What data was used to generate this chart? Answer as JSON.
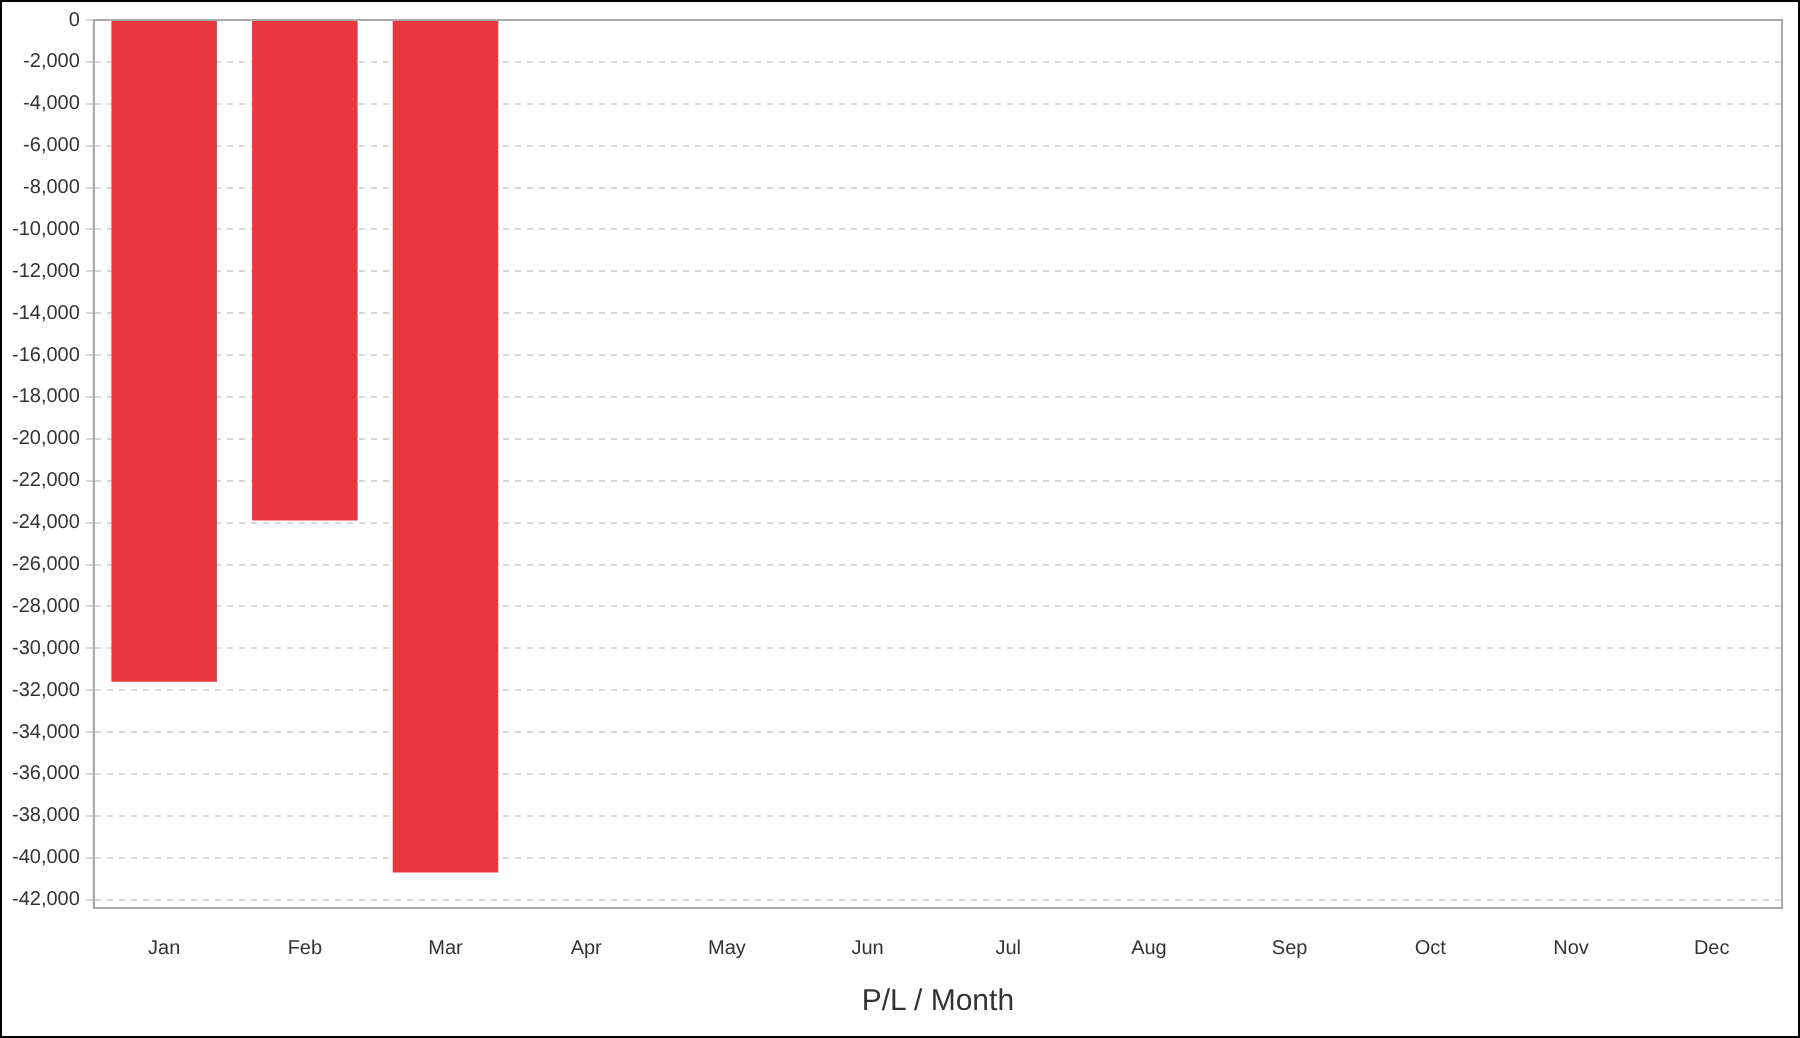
{
  "chart_data": {
    "type": "bar",
    "xlabel": "P/L / Month",
    "categories": [
      "Jan",
      "Feb",
      "Mar",
      "Apr",
      "May",
      "Jun",
      "Jul",
      "Aug",
      "Sep",
      "Oct",
      "Nov",
      "Dec"
    ],
    "values": [
      -31600,
      -23900,
      -40700,
      null,
      null,
      null,
      null,
      null,
      null,
      null,
      null,
      null
    ],
    "color": "#e8383d",
    "ylim": [
      -42400,
      0
    ],
    "yticks": [
      0,
      {
        "value": -2000,
        "label": "-2,000"
      },
      {
        "value": -4000,
        "label": "-4,000"
      },
      {
        "value": -6000,
        "label": "-6,000"
      },
      {
        "value": -8000,
        "label": "-8,000"
      },
      {
        "value": -10000,
        "label": "-10,000"
      },
      {
        "value": -12000,
        "label": "-12,000"
      },
      {
        "value": -14000,
        "label": "-14,000"
      },
      {
        "value": -16000,
        "label": "-16,000"
      },
      {
        "value": -18000,
        "label": "-18,000"
      },
      {
        "value": -20000,
        "label": "-20,000"
      },
      {
        "value": -22000,
        "label": "-22,000"
      },
      {
        "value": -24000,
        "label": "-24,000"
      },
      {
        "value": -26000,
        "label": "-26,000"
      },
      {
        "value": -28000,
        "label": "-28,000"
      },
      {
        "value": -30000,
        "label": "-30,000"
      },
      {
        "value": -32000,
        "label": "-32,000"
      },
      {
        "value": -34000,
        "label": "-34,000"
      },
      {
        "value": -36000,
        "label": "-36,000"
      },
      {
        "value": -38000,
        "label": "-38,000"
      },
      {
        "value": -40000,
        "label": "-40,000"
      },
      {
        "value": -42000,
        "label": "-42,000"
      }
    ],
    "grid": "y"
  }
}
